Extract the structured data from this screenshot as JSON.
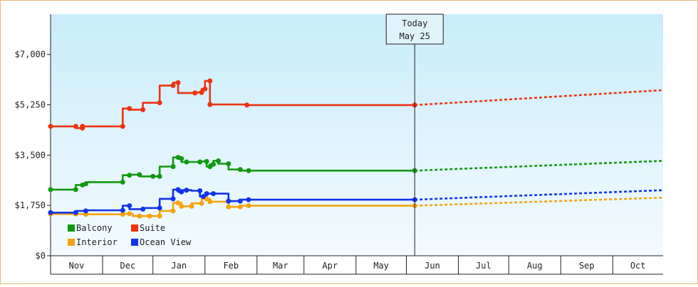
{
  "chart_data": {
    "type": "line",
    "title": "",
    "xlabel": "",
    "ylabel": "",
    "ylim": [
      0,
      8400
    ],
    "y_ticks": [
      0,
      1750,
      3500,
      5250,
      7000
    ],
    "y_tick_labels": [
      "$0",
      "$1,750",
      "$3,500",
      "$5,250",
      "$7,000"
    ],
    "x_range": [
      "2024-10-20",
      "2025-10-20"
    ],
    "month_labels": [
      {
        "label": "Nov",
        "start": "2024-10-20",
        "end": "2024-11-20"
      },
      {
        "label": "Dec",
        "start": "2024-11-20",
        "end": "2024-12-20"
      },
      {
        "label": "Jan",
        "start": "2024-12-20",
        "end": "2025-01-20"
      },
      {
        "label": "Feb",
        "start": "2025-01-20",
        "end": "2025-02-20"
      },
      {
        "label": "Mar",
        "start": "2025-02-20",
        "end": "2025-03-20"
      },
      {
        "label": "Apr",
        "start": "2025-03-20",
        "end": "2025-04-20"
      },
      {
        "label": "May",
        "start": "2025-04-20",
        "end": "2025-05-20"
      },
      {
        "label": "Jun",
        "start": "2025-05-20",
        "end": "2025-06-20"
      },
      {
        "label": "Jul",
        "start": "2025-06-20",
        "end": "2025-07-20"
      },
      {
        "label": "Aug",
        "start": "2025-07-20",
        "end": "2025-08-20"
      },
      {
        "label": "Sep",
        "start": "2025-08-20",
        "end": "2025-09-20"
      },
      {
        "label": "Oct",
        "start": "2025-09-20",
        "end": "2025-10-20"
      }
    ],
    "today": {
      "date": "2025-05-25",
      "label_line1": "Today",
      "label_line2": "May 25"
    },
    "background_gradient": [
      "#c8ecfa",
      "#f4fbff"
    ],
    "legend_placement": "bottom-left",
    "series": [
      {
        "name": "Balcony",
        "color": "#119911",
        "points": [
          [
            "2024-10-20",
            2300
          ],
          [
            "2024-11-04",
            2300
          ],
          [
            "2024-11-04",
            2460
          ],
          [
            "2024-11-08",
            2460
          ],
          [
            "2024-11-08",
            2500
          ],
          [
            "2024-11-10",
            2500
          ],
          [
            "2024-11-10",
            2560
          ],
          [
            "2024-12-02",
            2560
          ],
          [
            "2024-12-02",
            2800
          ],
          [
            "2024-12-06",
            2800
          ],
          [
            "2024-12-06",
            2820
          ],
          [
            "2024-12-12",
            2820
          ],
          [
            "2024-12-12",
            2760
          ],
          [
            "2024-12-20",
            2760
          ],
          [
            "2024-12-20",
            2760
          ],
          [
            "2024-12-24",
            2760
          ],
          [
            "2024-12-24",
            3100
          ],
          [
            "2025-01-01",
            3100
          ],
          [
            "2025-01-01",
            3420
          ],
          [
            "2025-01-04",
            3420
          ],
          [
            "2025-01-04",
            3380
          ],
          [
            "2025-01-06",
            3380
          ],
          [
            "2025-01-06",
            3260
          ],
          [
            "2025-01-09",
            3260
          ],
          [
            "2025-01-09",
            3260
          ],
          [
            "2025-01-17",
            3260
          ],
          [
            "2025-01-17",
            3280
          ],
          [
            "2025-01-21",
            3280
          ],
          [
            "2025-01-21",
            3100
          ],
          [
            "2025-01-23",
            3100
          ],
          [
            "2025-01-23",
            3180
          ],
          [
            "2025-01-25",
            3180
          ],
          [
            "2025-01-25",
            3300
          ],
          [
            "2025-01-28",
            3300
          ],
          [
            "2025-01-28",
            3200
          ],
          [
            "2025-02-03",
            3200
          ],
          [
            "2025-02-03",
            3000
          ],
          [
            "2025-02-10",
            3000
          ],
          [
            "2025-02-10",
            2960
          ],
          [
            "2025-02-15",
            2960
          ],
          [
            "2025-05-25",
            2960
          ]
        ],
        "markers": [
          [
            "2024-10-20",
            2300
          ],
          [
            "2024-11-04",
            2300
          ],
          [
            "2024-11-08",
            2460
          ],
          [
            "2024-11-10",
            2500
          ],
          [
            "2024-12-02",
            2560
          ],
          [
            "2024-12-06",
            2800
          ],
          [
            "2024-12-12",
            2820
          ],
          [
            "2024-12-20",
            2760
          ],
          [
            "2024-12-24",
            2760
          ],
          [
            "2025-01-01",
            3100
          ],
          [
            "2025-01-04",
            3420
          ],
          [
            "2025-01-06",
            3380
          ],
          [
            "2025-01-09",
            3260
          ],
          [
            "2025-01-17",
            3260
          ],
          [
            "2025-01-21",
            3280
          ],
          [
            "2025-01-23",
            3100
          ],
          [
            "2025-01-25",
            3180
          ],
          [
            "2025-01-28",
            3300
          ],
          [
            "2025-02-03",
            3200
          ],
          [
            "2025-02-10",
            3000
          ],
          [
            "2025-02-15",
            2960
          ],
          [
            "2025-05-25",
            2960
          ]
        ],
        "forecast": [
          [
            "2025-05-25",
            2960
          ],
          [
            "2025-10-20",
            3300
          ]
        ]
      },
      {
        "name": "Suite",
        "color": "#ee3311",
        "points": [
          [
            "2024-10-20",
            4500
          ],
          [
            "2024-11-04",
            4500
          ],
          [
            "2024-11-04",
            4440
          ],
          [
            "2024-11-08",
            4440
          ],
          [
            "2024-11-08",
            4500
          ],
          [
            "2024-12-02",
            4500
          ],
          [
            "2024-12-02",
            5120
          ],
          [
            "2024-12-06",
            5120
          ],
          [
            "2024-12-06",
            5080
          ],
          [
            "2024-12-14",
            5080
          ],
          [
            "2024-12-14",
            5320
          ],
          [
            "2024-12-24",
            5320
          ],
          [
            "2024-12-24",
            5920
          ],
          [
            "2025-01-01",
            5920
          ],
          [
            "2025-01-01",
            6020
          ],
          [
            "2025-01-04",
            6020
          ],
          [
            "2025-01-04",
            5660
          ],
          [
            "2025-01-14",
            5660
          ],
          [
            "2025-01-14",
            5680
          ],
          [
            "2025-01-18",
            5680
          ],
          [
            "2025-01-18",
            5800
          ],
          [
            "2025-01-20",
            5800
          ],
          [
            "2025-01-20",
            6080
          ],
          [
            "2025-01-23",
            6080
          ],
          [
            "2025-01-23",
            5260
          ],
          [
            "2025-02-14",
            5260
          ],
          [
            "2025-02-14",
            5240
          ],
          [
            "2025-05-25",
            5240
          ]
        ],
        "markers": [
          [
            "2024-10-20",
            4500
          ],
          [
            "2024-11-04",
            4500
          ],
          [
            "2024-11-08",
            4440
          ],
          [
            "2024-11-08",
            4500
          ],
          [
            "2024-12-02",
            4500
          ],
          [
            "2024-12-06",
            5120
          ],
          [
            "2024-12-14",
            5080
          ],
          [
            "2024-12-24",
            5320
          ],
          [
            "2025-01-01",
            5920
          ],
          [
            "2025-01-04",
            6020
          ],
          [
            "2025-01-14",
            5660
          ],
          [
            "2025-01-18",
            5680
          ],
          [
            "2025-01-20",
            5800
          ],
          [
            "2025-01-23",
            6080
          ],
          [
            "2025-01-23",
            5260
          ],
          [
            "2025-02-14",
            5240
          ],
          [
            "2025-05-25",
            5240
          ]
        ],
        "forecast": [
          [
            "2025-05-25",
            5240
          ],
          [
            "2025-10-20",
            5760
          ]
        ]
      },
      {
        "name": "Interior",
        "color": "#f5a311",
        "points": [
          [
            "2024-10-20",
            1450
          ],
          [
            "2024-11-10",
            1450
          ],
          [
            "2024-11-10",
            1440
          ],
          [
            "2024-12-02",
            1440
          ],
          [
            "2024-12-02",
            1460
          ],
          [
            "2024-12-08",
            1460
          ],
          [
            "2024-12-08",
            1380
          ],
          [
            "2024-12-24",
            1380
          ],
          [
            "2024-12-24",
            1560
          ],
          [
            "2025-01-01",
            1560
          ],
          [
            "2025-01-01",
            1840
          ],
          [
            "2025-01-06",
            1840
          ],
          [
            "2025-01-06",
            1720
          ],
          [
            "2025-01-12",
            1720
          ],
          [
            "2025-01-12",
            1820
          ],
          [
            "2025-01-18",
            1820
          ],
          [
            "2025-01-18",
            1980
          ],
          [
            "2025-01-23",
            1980
          ],
          [
            "2025-01-23",
            1880
          ],
          [
            "2025-02-03",
            1880
          ],
          [
            "2025-02-03",
            1700
          ],
          [
            "2025-02-10",
            1700
          ],
          [
            "2025-02-10",
            1740
          ],
          [
            "2025-05-25",
            1740
          ]
        ],
        "markers": [
          [
            "2024-10-20",
            1450
          ],
          [
            "2024-11-04",
            1450
          ],
          [
            "2024-11-10",
            1440
          ],
          [
            "2024-12-02",
            1440
          ],
          [
            "2024-12-06",
            1460
          ],
          [
            "2024-12-12",
            1380
          ],
          [
            "2024-12-18",
            1380
          ],
          [
            "2024-12-24",
            1380
          ],
          [
            "2025-01-01",
            1560
          ],
          [
            "2025-01-04",
            1840
          ],
          [
            "2025-01-06",
            1720
          ],
          [
            "2025-01-12",
            1720
          ],
          [
            "2025-01-18",
            1820
          ],
          [
            "2025-01-21",
            1980
          ],
          [
            "2025-01-23",
            1880
          ],
          [
            "2025-02-03",
            1700
          ],
          [
            "2025-02-10",
            1700
          ],
          [
            "2025-02-15",
            1740
          ],
          [
            "2025-05-25",
            1740
          ]
        ],
        "forecast": [
          [
            "2025-05-25",
            1740
          ],
          [
            "2025-10-20",
            2020
          ]
        ]
      },
      {
        "name": "Ocean View",
        "color": "#1133ee",
        "points": [
          [
            "2024-10-20",
            1500
          ],
          [
            "2024-11-04",
            1500
          ],
          [
            "2024-11-04",
            1560
          ],
          [
            "2024-11-10",
            1560
          ],
          [
            "2024-11-10",
            1580
          ],
          [
            "2024-12-02",
            1580
          ],
          [
            "2024-12-02",
            1740
          ],
          [
            "2024-12-06",
            1740
          ],
          [
            "2024-12-06",
            1620
          ],
          [
            "2024-12-14",
            1620
          ],
          [
            "2024-12-14",
            1660
          ],
          [
            "2024-12-24",
            1660
          ],
          [
            "2024-12-24",
            1980
          ],
          [
            "2025-01-01",
            1980
          ],
          [
            "2025-01-01",
            2300
          ],
          [
            "2025-01-04",
            2300
          ],
          [
            "2025-01-04",
            2220
          ],
          [
            "2025-01-06",
            2220
          ],
          [
            "2025-01-06",
            2280
          ],
          [
            "2025-01-12",
            2280
          ],
          [
            "2025-01-12",
            2260
          ],
          [
            "2025-01-17",
            2260
          ],
          [
            "2025-01-17",
            2060
          ],
          [
            "2025-01-21",
            2060
          ],
          [
            "2025-01-21",
            2160
          ],
          [
            "2025-02-03",
            2160
          ],
          [
            "2025-02-03",
            1900
          ],
          [
            "2025-02-10",
            1900
          ],
          [
            "2025-02-10",
            1950
          ],
          [
            "2025-05-25",
            1950
          ]
        ],
        "markers": [
          [
            "2024-10-20",
            1500
          ],
          [
            "2024-11-04",
            1500
          ],
          [
            "2024-11-10",
            1560
          ],
          [
            "2024-12-02",
            1580
          ],
          [
            "2024-12-06",
            1740
          ],
          [
            "2024-12-14",
            1620
          ],
          [
            "2024-12-24",
            1660
          ],
          [
            "2025-01-01",
            1980
          ],
          [
            "2025-01-04",
            2300
          ],
          [
            "2025-01-06",
            2220
          ],
          [
            "2025-01-09",
            2280
          ],
          [
            "2025-01-17",
            2260
          ],
          [
            "2025-01-19",
            2060
          ],
          [
            "2025-01-21",
            2160
          ],
          [
            "2025-01-25",
            2160
          ],
          [
            "2025-02-03",
            1900
          ],
          [
            "2025-02-10",
            1900
          ],
          [
            "2025-02-15",
            1950
          ],
          [
            "2025-05-25",
            1950
          ]
        ],
        "forecast": [
          [
            "2025-05-25",
            1950
          ],
          [
            "2025-10-20",
            2280
          ]
        ]
      }
    ]
  }
}
